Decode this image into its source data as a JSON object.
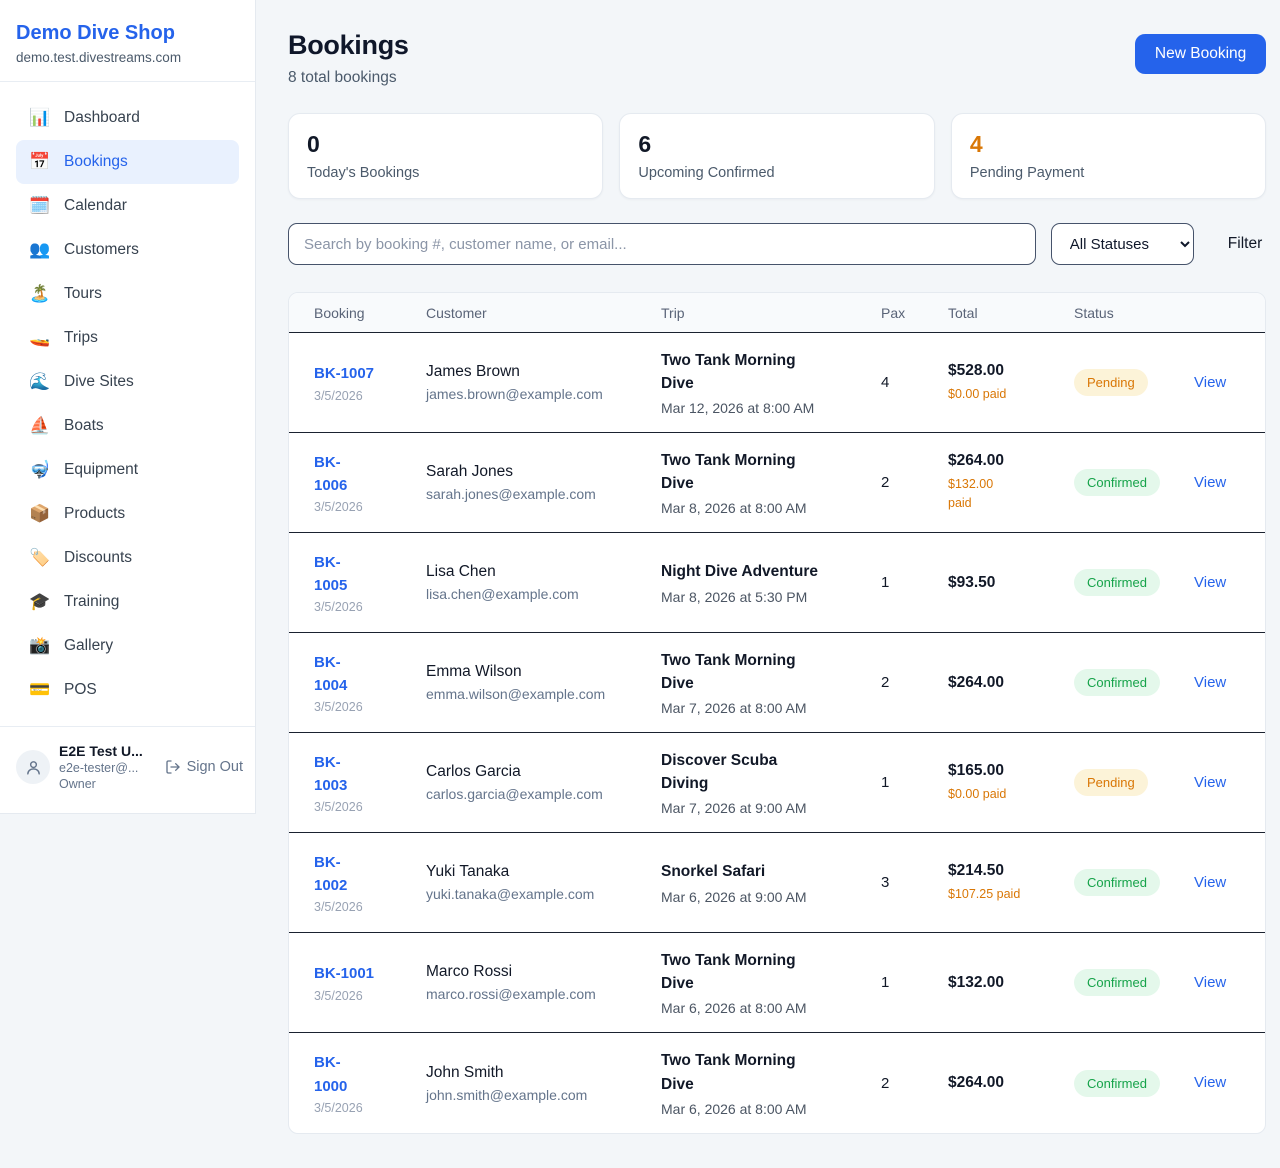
{
  "brand": {
    "name": "Demo Dive Shop",
    "domain": "demo.test.divestreams.com"
  },
  "sidebar": {
    "items": [
      {
        "label": "Dashboard",
        "icon": "📊",
        "icon_name": "bar-chart-icon",
        "active": false
      },
      {
        "label": "Bookings",
        "icon": "📅",
        "icon_name": "calendar-icon",
        "active": true
      },
      {
        "label": "Calendar",
        "icon": "🗓️",
        "icon_name": "spiral-calendar-icon",
        "active": false
      },
      {
        "label": "Customers",
        "icon": "👥",
        "icon_name": "users-icon",
        "active": false
      },
      {
        "label": "Tours",
        "icon": "🏝️",
        "icon_name": "island-icon",
        "active": false
      },
      {
        "label": "Trips",
        "icon": "🚤",
        "icon_name": "speedboat-icon",
        "active": false
      },
      {
        "label": "Dive Sites",
        "icon": "🌊",
        "icon_name": "wave-icon",
        "active": false
      },
      {
        "label": "Boats",
        "icon": "⛵",
        "icon_name": "sailboat-icon",
        "active": false
      },
      {
        "label": "Equipment",
        "icon": "🤿",
        "icon_name": "diving-mask-icon",
        "active": false
      },
      {
        "label": "Products",
        "icon": "📦",
        "icon_name": "package-icon",
        "active": false
      },
      {
        "label": "Discounts",
        "icon": "🏷️",
        "icon_name": "tag-icon",
        "active": false
      },
      {
        "label": "Training",
        "icon": "🎓",
        "icon_name": "graduation-cap-icon",
        "active": false
      },
      {
        "label": "Gallery",
        "icon": "📸",
        "icon_name": "camera-icon",
        "active": false
      },
      {
        "label": "POS",
        "icon": "💳",
        "icon_name": "credit-card-icon",
        "active": false
      }
    ]
  },
  "user": {
    "name": "E2E Test U...",
    "email": "e2e-tester@...",
    "role": "Owner",
    "sign_out_label": "Sign Out"
  },
  "header": {
    "title": "Bookings",
    "subtitle": "8 total bookings",
    "new_booking_label": "New Booking"
  },
  "stats": [
    {
      "value": "0",
      "label": "Today's Bookings",
      "accent": false
    },
    {
      "value": "6",
      "label": "Upcoming Confirmed",
      "accent": false
    },
    {
      "value": "4",
      "label": "Pending Payment",
      "accent": true
    }
  ],
  "controls": {
    "search_placeholder": "Search by booking #, customer name, or email...",
    "status_filter": "All Statuses",
    "filter_label": "Filter"
  },
  "table": {
    "columns": [
      "Booking",
      "Customer",
      "Trip",
      "Pax",
      "Total",
      "Status"
    ],
    "view_label": "View",
    "rows": [
      {
        "id": "BK-1007",
        "date": "3/5/2026",
        "customer": "James Brown",
        "email": "james.brown@example.com",
        "trip": "Two Tank Morning\nDive",
        "trip_time": "Mar 12, 2026 at 8:00 AM",
        "pax": "4",
        "total": "$528.00",
        "paid": "$0.00 paid",
        "status": "Pending",
        "status_type": "pending"
      },
      {
        "id": "BK-\n1006",
        "date": "3/5/2026",
        "customer": "Sarah Jones",
        "email": "sarah.jones@example.com",
        "trip": "Two Tank Morning\nDive",
        "trip_time": "Mar 8, 2026 at 8:00 AM",
        "pax": "2",
        "total": "$264.00",
        "paid": "$132.00\npaid",
        "status": "Confirmed",
        "status_type": "confirmed"
      },
      {
        "id": "BK-\n1005",
        "date": "3/5/2026",
        "customer": "Lisa Chen",
        "email": "lisa.chen@example.com",
        "trip": "Night Dive Adventure",
        "trip_time": "Mar 8, 2026 at 5:30 PM",
        "pax": "1",
        "total": "$93.50",
        "paid": null,
        "status": "Confirmed",
        "status_type": "confirmed"
      },
      {
        "id": "BK-\n1004",
        "date": "3/5/2026",
        "customer": "Emma Wilson",
        "email": "emma.wilson@example.com",
        "trip": "Two Tank Morning\nDive",
        "trip_time": "Mar 7, 2026 at 8:00 AM",
        "pax": "2",
        "total": "$264.00",
        "paid": null,
        "status": "Confirmed",
        "status_type": "confirmed"
      },
      {
        "id": "BK-\n1003",
        "date": "3/5/2026",
        "customer": "Carlos Garcia",
        "email": "carlos.garcia@example.com",
        "trip": "Discover Scuba\nDiving",
        "trip_time": "Mar 7, 2026 at 9:00 AM",
        "pax": "1",
        "total": "$165.00",
        "paid": "$0.00 paid",
        "status": "Pending",
        "status_type": "pending"
      },
      {
        "id": "BK-\n1002",
        "date": "3/5/2026",
        "customer": "Yuki Tanaka",
        "email": "yuki.tanaka@example.com",
        "trip": "Snorkel Safari",
        "trip_time": "Mar 6, 2026 at 9:00 AM",
        "pax": "3",
        "total": "$214.50",
        "paid": "$107.25 paid",
        "status": "Confirmed",
        "status_type": "confirmed"
      },
      {
        "id": "BK-1001",
        "date": "3/5/2026",
        "customer": "Marco Rossi",
        "email": "marco.rossi@example.com",
        "trip": "Two Tank Morning\nDive",
        "trip_time": "Mar 6, 2026 at 8:00 AM",
        "pax": "1",
        "total": "$132.00",
        "paid": null,
        "status": "Confirmed",
        "status_type": "confirmed"
      },
      {
        "id": "BK-\n1000",
        "date": "3/5/2026",
        "customer": "John Smith",
        "email": "john.smith@example.com",
        "trip": "Two Tank Morning\nDive",
        "trip_time": "Mar 6, 2026 at 8:00 AM",
        "pax": "2",
        "total": "$264.00",
        "paid": null,
        "status": "Confirmed",
        "status_type": "confirmed"
      }
    ]
  }
}
